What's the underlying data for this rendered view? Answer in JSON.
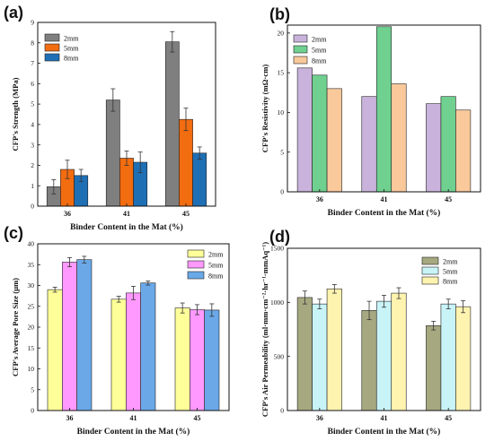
{
  "chart_data": [
    {
      "type": "bar",
      "panel_label": "(a)",
      "categories": [
        "36",
        "41",
        "45"
      ],
      "xlabel": "Binder Content in the Mat (%)",
      "ylabel": "CFP's Strength (MPa)",
      "ylim": [
        0,
        9
      ],
      "yticks": [
        0,
        1,
        2,
        3,
        4,
        5,
        6,
        7,
        8,
        9
      ],
      "legend_position": "top-left",
      "grid": false,
      "series": [
        {
          "name": "2mm",
          "color": "#7f7f7f",
          "values": [
            0.95,
            5.2,
            8.05
          ],
          "errors": [
            0.35,
            0.55,
            0.5
          ]
        },
        {
          "name": "5mm",
          "color": "#f26c10",
          "values": [
            1.8,
            2.35,
            4.25
          ],
          "errors": [
            0.45,
            0.35,
            0.55
          ]
        },
        {
          "name": "8mm",
          "color": "#1f6fb5",
          "values": [
            1.5,
            2.15,
            2.6
          ],
          "errors": [
            0.3,
            0.5,
            0.3
          ]
        }
      ]
    },
    {
      "type": "bar",
      "panel_label": "(b)",
      "categories": [
        "36",
        "41",
        "45"
      ],
      "xlabel": "Binder Content in the Mat (%)",
      "ylabel": "CFP's Resistivity (mΩ·cm)",
      "ylim": [
        0,
        21
      ],
      "yticks": [
        0,
        5,
        10,
        15,
        20
      ],
      "legend_position": "top-left",
      "grid": false,
      "series": [
        {
          "name": "2mm",
          "color": "#c9b3dc",
          "values": [
            15.6,
            12.0,
            11.1
          ]
        },
        {
          "name": "5mm",
          "color": "#6fd08f",
          "values": [
            14.7,
            20.8,
            12.0
          ]
        },
        {
          "name": "8mm",
          "color": "#f9c99b",
          "values": [
            13.0,
            13.6,
            10.3
          ]
        }
      ]
    },
    {
      "type": "bar",
      "panel_label": "(c)",
      "categories": [
        "36",
        "41",
        "45"
      ],
      "xlabel": "Binder Content in the Mat (%)",
      "ylabel": "CFP's Average Pore Size (μm)",
      "ylim": [
        0,
        40
      ],
      "yticks": [
        0,
        5,
        10,
        15,
        20,
        25,
        30,
        35,
        40
      ],
      "legend_position": "top-right",
      "grid": false,
      "series": [
        {
          "name": "2mm",
          "color": "#ffff99",
          "values": [
            29.0,
            26.7,
            24.6
          ],
          "errors": [
            0.6,
            0.7,
            1.2
          ]
        },
        {
          "name": "5mm",
          "color": "#ff99ff",
          "values": [
            35.6,
            28.2,
            24.2
          ],
          "errors": [
            1.1,
            1.6,
            1.2
          ]
        },
        {
          "name": "8mm",
          "color": "#6aa8e8",
          "values": [
            36.2,
            30.6,
            24.1
          ],
          "errors": [
            0.8,
            0.5,
            1.5
          ]
        }
      ]
    },
    {
      "type": "bar",
      "panel_label": "(d)",
      "categories": [
        "36",
        "41",
        "45"
      ],
      "xlabel": "Binder Content in the Mat (%)",
      "ylabel": "CFP's Air Permeability (ml·mm·cm⁻²·hr⁻¹·mmAq⁻¹)",
      "ylim": [
        0,
        1500
      ],
      "yticks": [
        0,
        500,
        1000,
        1500
      ],
      "legend_position": "top-right",
      "grid": false,
      "series": [
        {
          "name": "2mm",
          "color": "#a6a880",
          "values": [
            1045,
            925,
            785
          ],
          "errors": [
            60,
            85,
            40
          ]
        },
        {
          "name": "5mm",
          "color": "#c8f4f8",
          "values": [
            985,
            1010,
            985
          ],
          "errors": [
            45,
            55,
            45
          ]
        },
        {
          "name": "8mm",
          "color": "#fff3b0",
          "values": [
            1125,
            1085,
            960
          ],
          "errors": [
            40,
            50,
            55
          ]
        }
      ]
    }
  ]
}
